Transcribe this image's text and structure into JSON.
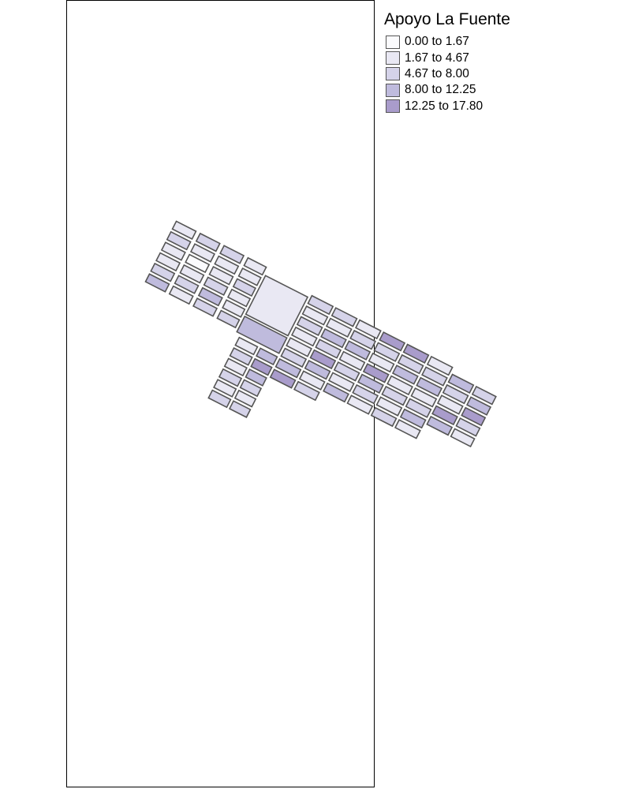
{
  "legend": {
    "title": "Apoyo La Fuente",
    "classes": [
      {
        "label": "0.00 to 1.67",
        "color": "#fbfbfd"
      },
      {
        "label": "1.67 to 4.67",
        "color": "#e9e8f3"
      },
      {
        "label": "4.67 to 8.00",
        "color": "#d5d3e9"
      },
      {
        "label": "8.00 to 12.25",
        "color": "#bfbbdd"
      },
      {
        "label": "12.25 to 17.80",
        "color": "#a99ccb"
      }
    ]
  },
  "colors": {
    "frame": "#000000",
    "block_border": "#555555",
    "background": "#ffffff"
  }
}
